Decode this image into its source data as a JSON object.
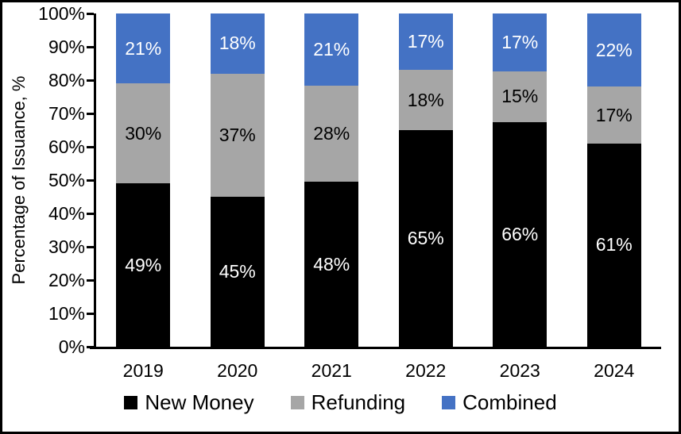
{
  "chart_data": {
    "type": "bar",
    "stacked": true,
    "percent_stacked": true,
    "title": "",
    "xlabel": "",
    "ylabel": "Percentage of Issuance, %",
    "categories": [
      "2019",
      "2020",
      "2021",
      "2022",
      "2023",
      "2024"
    ],
    "series": [
      {
        "name": "New Money",
        "color": "#000000",
        "label_color": "#ffffff",
        "values": [
          49,
          45,
          48,
          65,
          66,
          61
        ]
      },
      {
        "name": "Refunding",
        "color": "#a6a6a6",
        "label_color": "#000000",
        "values": [
          30,
          37,
          28,
          18,
          15,
          17
        ]
      },
      {
        "name": "Combined",
        "color": "#4472c4",
        "label_color": "#ffffff",
        "values": [
          21,
          18,
          21,
          17,
          17,
          22
        ]
      }
    ],
    "value_suffix": "%",
    "y_ticks": [
      "0%",
      "10%",
      "20%",
      "30%",
      "40%",
      "50%",
      "60%",
      "70%",
      "80%",
      "90%",
      "100%"
    ],
    "ylim": [
      0,
      100
    ],
    "grid": false,
    "legend_position": "bottom",
    "axis_color": "#000000",
    "background_color": "#ffffff"
  }
}
